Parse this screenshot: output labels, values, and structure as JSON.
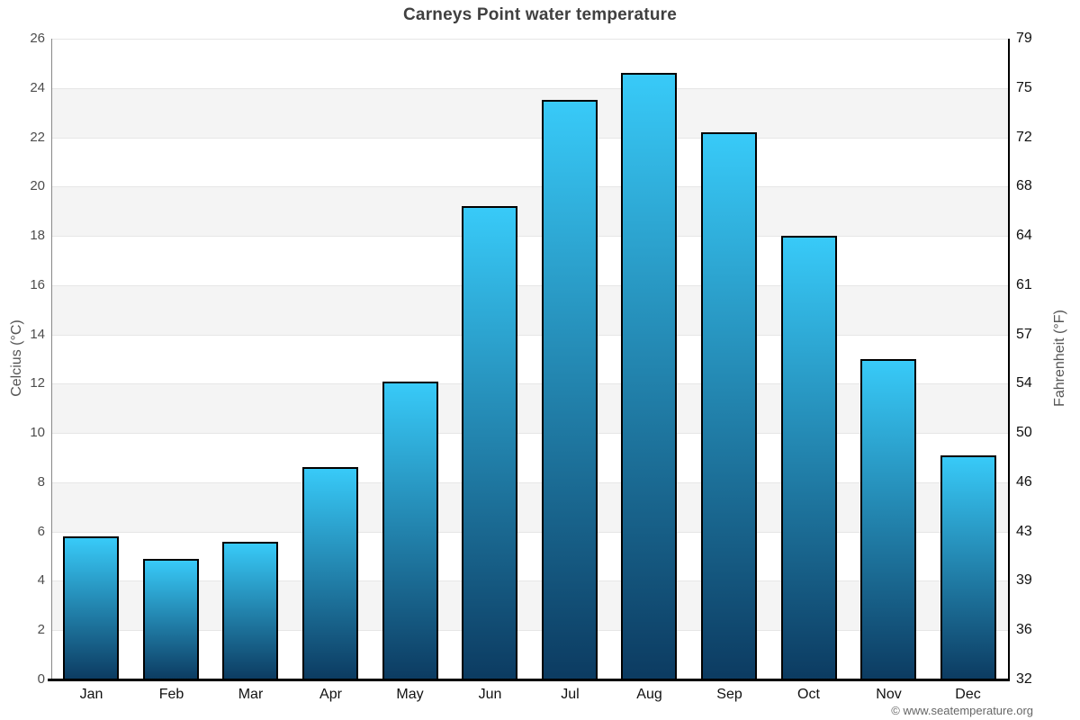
{
  "title": "Carneys Point water temperature",
  "footer_credit": "© www.seatemperature.org",
  "axes": {
    "left": {
      "title": "Celcius (°C)",
      "ticks": [
        "0",
        "2",
        "4",
        "6",
        "8",
        "10",
        "12",
        "14",
        "16",
        "18",
        "20",
        "22",
        "24",
        "26"
      ]
    },
    "right": {
      "title": "Fahrenheit (°F)",
      "ticks": [
        "32",
        "36",
        "39",
        "43",
        "46",
        "50",
        "54",
        "57",
        "61",
        "64",
        "68",
        "72",
        "75",
        "79"
      ]
    }
  },
  "chart_data": {
    "type": "bar",
    "title": "Carneys Point water temperature",
    "categories": [
      "Jan",
      "Feb",
      "Mar",
      "Apr",
      "May",
      "Jun",
      "Jul",
      "Aug",
      "Sep",
      "Oct",
      "Nov",
      "Dec"
    ],
    "values": [
      5.8,
      4.9,
      5.6,
      8.6,
      12.1,
      19.2,
      23.5,
      24.6,
      22.2,
      18.0,
      13.0,
      9.1
    ],
    "xlabel": "",
    "ylabel": "Celcius (°C)",
    "ylabel_secondary": "Fahrenheit (°F)",
    "ylim": [
      0,
      26
    ],
    "ytick_step": 2,
    "secondary_tick_labels": [
      "32",
      "36",
      "39",
      "43",
      "46",
      "50",
      "54",
      "57",
      "61",
      "64",
      "68",
      "72",
      "75",
      "79"
    ],
    "grid": true,
    "alternating_bands": true,
    "legend": false
  },
  "colors": {
    "bar_top": "#38CAF8",
    "bar_bottom": "#0C3B61",
    "bar_border": "#000000",
    "band": "#f4f4f4",
    "gridline": "#e6e6e6",
    "title_text": "#404040",
    "left_axis_text": "#4d4d4d",
    "right_axis_text": "#111111",
    "month_text": "#111111",
    "axis_title_text": "#555555",
    "left_axis_line": "#888888",
    "right_axis_line": "#000000",
    "bottom_axis_line": "#000000",
    "footer_text": "#666666"
  }
}
